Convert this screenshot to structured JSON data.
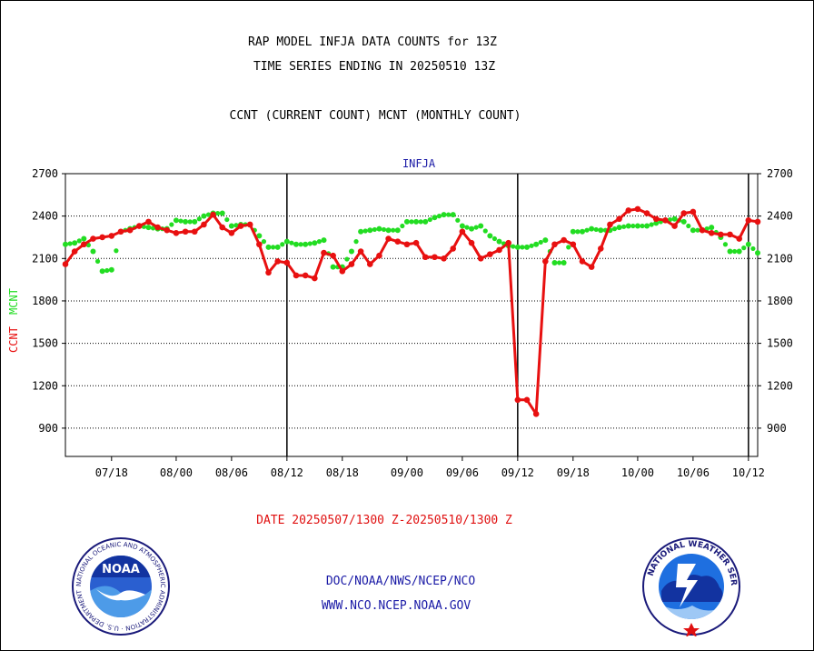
{
  "header": {
    "title_line1": "RAP MODEL INFJA DATA COUNTS for 13Z",
    "title_line2": "TIME SERIES ENDING IN 20250510 13Z",
    "subtitle": "CCNT (CURRENT COUNT) MCNT (MONTHLY COUNT)"
  },
  "footer": {
    "date_range": "DATE 20250507/1300 Z-20250510/1300 Z",
    "org_line": "DOC/NOAA/NWS/NCEP/NCO",
    "url_line": "WWW.NCO.NCEP.NOAA.GOV",
    "noaa_logo_text": "NOAA",
    "noaa_ring_text": "NATIONAL OCEANIC AND ATMOSPHERIC ADMINISTRATION · U.S. DEPARTMENT OF COMMERCE ·",
    "nws_ring_text": "NATIONAL WEATHER SERVICE"
  },
  "colors": {
    "ccnt": "#e81010",
    "mcnt": "#22dd22",
    "axis": "#000000",
    "plot_title": "#1a1aa6"
  },
  "chart_data": {
    "type": "line",
    "plot_title": "INFJA",
    "ylabel_ccnt": "CCNT",
    "ylabel_mcnt": "MCNT",
    "ylim": [
      700,
      2700
    ],
    "yticks": [
      900,
      1200,
      1500,
      1800,
      2100,
      2400,
      2700
    ],
    "grid": true,
    "grid_lines_y": [
      900,
      1200,
      1500,
      1800,
      2100,
      2400
    ],
    "x_tick_labels": [
      "07/18",
      "08/00",
      "08/06",
      "08/12",
      "08/18",
      "09/00",
      "09/06",
      "09/12",
      "09/18",
      "10/00",
      "10/06",
      "10/12"
    ],
    "day_boundaries": [
      "08/12",
      "09/12",
      "10/12"
    ],
    "series": [
      {
        "name": "CCNT",
        "style": "solid-line-with-dots",
        "x": [
          "07/13",
          "07/14",
          "07/15",
          "07/16",
          "07/17",
          "07/18",
          "07/19",
          "07/20",
          "07/21",
          "07/22",
          "07/23",
          "07/24",
          "08/00",
          "08/01",
          "08/02",
          "08/03",
          "08/04",
          "08/05",
          "08/06",
          "08/07",
          "08/08",
          "08/09",
          "08/10",
          "08/11",
          "08/12",
          "08/13",
          "08/14",
          "08/15",
          "08/16",
          "08/17",
          "08/18",
          "08/19",
          "08/20",
          "08/21",
          "08/22",
          "08/23",
          "08/24",
          "09/00",
          "09/01",
          "09/02",
          "09/03",
          "09/04",
          "09/05",
          "09/06",
          "09/07",
          "09/08",
          "09/09",
          "09/10",
          "09/11",
          "09/12",
          "09/13",
          "09/14",
          "09/15",
          "09/16",
          "09/17",
          "09/18",
          "09/19",
          "09/20",
          "09/21",
          "09/22",
          "09/23",
          "09/24",
          "10/00",
          "10/01",
          "10/02",
          "10/03",
          "10/04",
          "10/05",
          "10/06",
          "10/07",
          "10/08",
          "10/09",
          "10/10",
          "10/11",
          "10/12",
          "10/13"
        ],
        "values": [
          2060,
          2150,
          2200,
          2240,
          2250,
          2260,
          2290,
          2300,
          2330,
          2360,
          2320,
          2300,
          2280,
          2290,
          2290,
          2340,
          2410,
          2320,
          2280,
          2330,
          2340,
          2200,
          2000,
          2080,
          2070,
          1980,
          1980,
          1960,
          2140,
          2120,
          2010,
          2060,
          2150,
          2060,
          2120,
          2240,
          2220,
          2200,
          2210,
          2110,
          2110,
          2100,
          2170,
          2290,
          2210,
          2100,
          2130,
          2160,
          2210,
          1100,
          1100,
          1000,
          2080,
          2200,
          2230,
          2200,
          2080,
          2040,
          2170,
          2340,
          2380,
          2440,
          2450,
          2420,
          2380,
          2370,
          2330,
          2420,
          2430,
          2300,
          2280,
          2270,
          2270,
          2240,
          2370,
          2360
        ]
      },
      {
        "name": "MCNT",
        "style": "dotted",
        "x": [
          "07/13",
          "07/14",
          "07/15",
          "07/16",
          "07/17",
          "07/18",
          "07/19",
          "07/20",
          "07/21",
          "07/22",
          "07/23",
          "07/24",
          "08/00",
          "08/01",
          "08/02",
          "08/03",
          "08/04",
          "08/05",
          "08/06",
          "08/07",
          "08/08",
          "08/09",
          "08/10",
          "08/11",
          "08/12",
          "08/13",
          "08/14",
          "08/15",
          "08/16",
          "08/17",
          "08/18",
          "08/19",
          "08/20",
          "08/21",
          "08/22",
          "08/23",
          "08/24",
          "09/00",
          "09/01",
          "09/02",
          "09/03",
          "09/04",
          "09/05",
          "09/06",
          "09/07",
          "09/08",
          "09/09",
          "09/10",
          "09/11",
          "09/12",
          "09/13",
          "09/14",
          "09/15",
          "09/16",
          "09/17",
          "09/18",
          "09/19",
          "09/20",
          "09/21",
          "09/22",
          "09/23",
          "09/24",
          "10/00",
          "10/01",
          "10/02",
          "10/03",
          "10/04",
          "10/05",
          "10/06",
          "10/07",
          "10/08",
          "10/09",
          "10/10",
          "10/11",
          "10/12",
          "10/13"
        ],
        "values": [
          2200,
          2210,
          2240,
          2150,
          2010,
          2020,
          2290,
          2310,
          2330,
          2320,
          2310,
          2310,
          2370,
          2360,
          2360,
          2400,
          2420,
          2420,
          2330,
          2340,
          2340,
          2260,
          2180,
          2180,
          2220,
          2200,
          2200,
          2210,
          2230,
          2040,
          2040,
          2150,
          2290,
          2300,
          2310,
          2300,
          2300,
          2360,
          2360,
          2360,
          2390,
          2410,
          2410,
          2330,
          2310,
          2330,
          2260,
          2220,
          2190,
          2180,
          2180,
          2200,
          2230,
          2070,
          2070,
          2290,
          2290,
          2310,
          2300,
          2300,
          2320,
          2330,
          2330,
          2330,
          2350,
          2370,
          2380,
          2360,
          2300,
          2300,
          2320,
          2250,
          2150,
          2150,
          2200,
          2140
        ]
      }
    ]
  }
}
